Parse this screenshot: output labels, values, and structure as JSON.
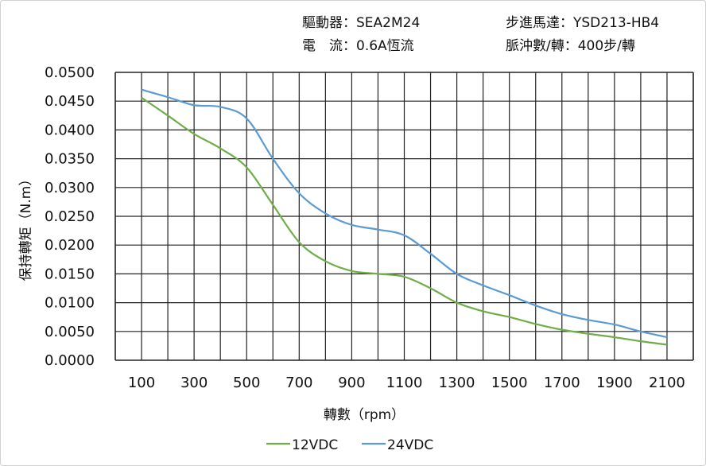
{
  "header": {
    "driver": "驅動器：SEA2M24",
    "motor": "步進馬達：YSD213-HB4",
    "current": "電　流：0.6A恆流",
    "pulses": "脈沖數/轉：400步/轉"
  },
  "chart_data": {
    "type": "line",
    "title": "",
    "xlabel": "轉數（rpm）",
    "ylabel": "保持轉矩（N.m）",
    "xlim": [
      0,
      2200
    ],
    "ylim": [
      0,
      0.05
    ],
    "grid": true,
    "legend_position": "bottom",
    "x_tick_labels": [
      "100",
      "300",
      "500",
      "700",
      "900",
      "1100",
      "1300",
      "1500",
      "1700",
      "1900",
      "2100"
    ],
    "y_tick_labels": [
      "0.0000",
      "0.0050",
      "0.0100",
      "0.0150",
      "0.0200",
      "0.0250",
      "0.0300",
      "0.0350",
      "0.0400",
      "0.0450",
      "0.0500"
    ],
    "x": [
      100,
      200,
      300,
      400,
      500,
      600,
      700,
      800,
      900,
      1000,
      1100,
      1200,
      1300,
      1400,
      1500,
      1600,
      1700,
      1800,
      1900,
      2000,
      2100
    ],
    "series": [
      {
        "name": "12VDC",
        "color": "#70ad47",
        "values": [
          0.0456,
          0.0425,
          0.0393,
          0.0368,
          0.0335,
          0.027,
          0.0205,
          0.0172,
          0.0155,
          0.015,
          0.0145,
          0.0125,
          0.01,
          0.0085,
          0.0075,
          0.0063,
          0.0053,
          0.0046,
          0.004,
          0.0033,
          0.0027
        ]
      },
      {
        "name": "24VDC",
        "color": "#5b9bd5",
        "values": [
          0.047,
          0.0457,
          0.0443,
          0.044,
          0.042,
          0.035,
          0.029,
          0.0255,
          0.0235,
          0.0227,
          0.0217,
          0.0185,
          0.015,
          0.013,
          0.0113,
          0.0095,
          0.008,
          0.007,
          0.0062,
          0.005,
          0.004
        ]
      }
    ]
  }
}
